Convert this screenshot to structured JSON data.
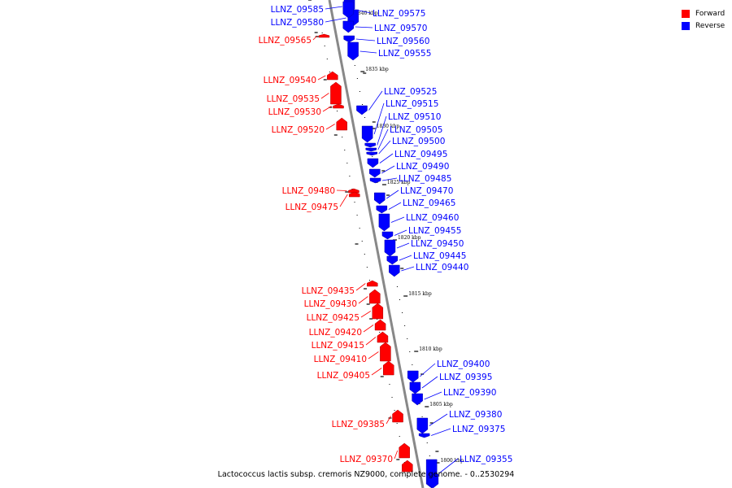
{
  "colors": {
    "forward": "#ff0000",
    "reverse": "#0000ff",
    "backbone": "#888888"
  },
  "legend": {
    "forward_label": "Forward",
    "reverse_label": "Reverse"
  },
  "caption": "Lactococcus lactis subsp. cremoris NZ9000, complete genome. - 0..2530294",
  "scale_marks": [
    "1840 kbp",
    "1835 kbp",
    "1830 kbp",
    "1825 kbp",
    "1820 kbp",
    "1815 kbp",
    "1810 kbp",
    "1805 kbp",
    "1800 kbp"
  ],
  "genes": [
    {
      "id": "LLNZ_09585",
      "strand": "reverse"
    },
    {
      "id": "LLNZ_09580",
      "strand": "reverse"
    },
    {
      "id": "LLNZ_09575",
      "strand": "reverse"
    },
    {
      "id": "LLNZ_09570",
      "strand": "reverse"
    },
    {
      "id": "LLNZ_09565",
      "strand": "forward"
    },
    {
      "id": "LLNZ_09560",
      "strand": "reverse"
    },
    {
      "id": "LLNZ_09555",
      "strand": "reverse"
    },
    {
      "id": "LLNZ_09540",
      "strand": "forward"
    },
    {
      "id": "LLNZ_09535",
      "strand": "forward"
    },
    {
      "id": "LLNZ_09530",
      "strand": "forward"
    },
    {
      "id": "LLNZ_09525",
      "strand": "reverse"
    },
    {
      "id": "LLNZ_09520",
      "strand": "forward"
    },
    {
      "id": "LLNZ_09515",
      "strand": "reverse"
    },
    {
      "id": "LLNZ_09510",
      "strand": "reverse"
    },
    {
      "id": "LLNZ_09505",
      "strand": "reverse"
    },
    {
      "id": "LLNZ_09500",
      "strand": "reverse"
    },
    {
      "id": "LLNZ_09495",
      "strand": "reverse"
    },
    {
      "id": "LLNZ_09490",
      "strand": "reverse"
    },
    {
      "id": "LLNZ_09485",
      "strand": "reverse"
    },
    {
      "id": "LLNZ_09480",
      "strand": "forward"
    },
    {
      "id": "LLNZ_09475",
      "strand": "forward"
    },
    {
      "id": "LLNZ_09470",
      "strand": "reverse"
    },
    {
      "id": "LLNZ_09465",
      "strand": "reverse"
    },
    {
      "id": "LLNZ_09460",
      "strand": "reverse"
    },
    {
      "id": "LLNZ_09455",
      "strand": "reverse"
    },
    {
      "id": "LLNZ_09450",
      "strand": "reverse"
    },
    {
      "id": "LLNZ_09445",
      "strand": "reverse"
    },
    {
      "id": "LLNZ_09440",
      "strand": "reverse"
    },
    {
      "id": "LLNZ_09435",
      "strand": "forward"
    },
    {
      "id": "LLNZ_09430",
      "strand": "forward"
    },
    {
      "id": "LLNZ_09425",
      "strand": "forward"
    },
    {
      "id": "LLNZ_09420",
      "strand": "forward"
    },
    {
      "id": "LLNZ_09415",
      "strand": "forward"
    },
    {
      "id": "LLNZ_09410",
      "strand": "forward"
    },
    {
      "id": "LLNZ_09405",
      "strand": "forward"
    },
    {
      "id": "LLNZ_09400",
      "strand": "reverse"
    },
    {
      "id": "LLNZ_09395",
      "strand": "reverse"
    },
    {
      "id": "LLNZ_09390",
      "strand": "reverse"
    },
    {
      "id": "LLNZ_09385",
      "strand": "forward"
    },
    {
      "id": "LLNZ_09380",
      "strand": "reverse"
    },
    {
      "id": "LLNZ_09375",
      "strand": "reverse"
    },
    {
      "id": "LLNZ_09370",
      "strand": "forward"
    },
    {
      "id": "LLNZ_09355",
      "strand": "reverse"
    }
  ]
}
